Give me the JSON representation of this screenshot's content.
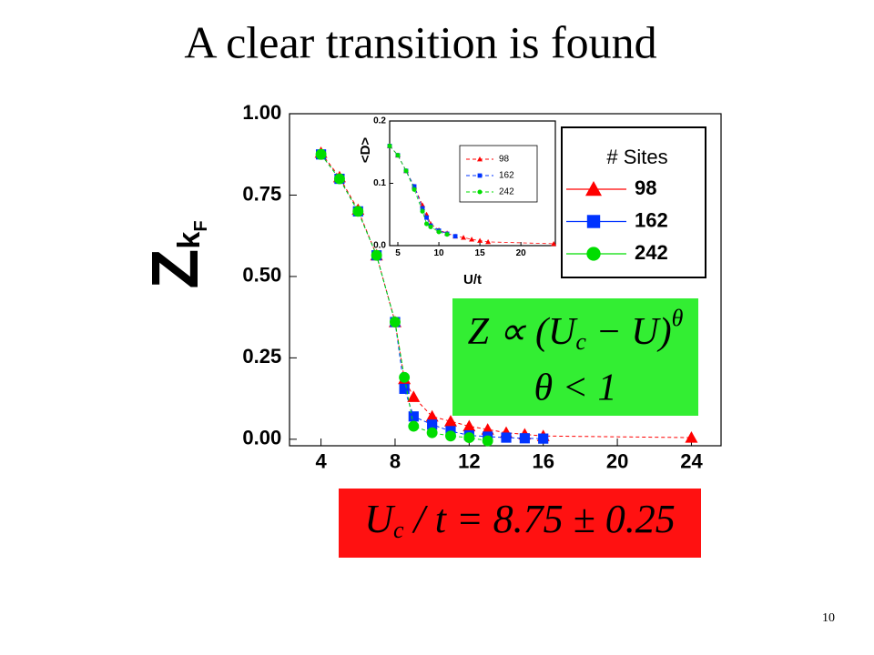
{
  "slide": {
    "title": "A clear transition is found",
    "page_number": "10"
  },
  "equations": {
    "scaling": [
      "Z ∝ (U",
      "c",
      " − U)",
      "θ"
    ],
    "exponent": "θ < 1",
    "critical": [
      "U",
      "c",
      " / t = 8.75 ± 0.25"
    ]
  },
  "chart_data": [
    {
      "type": "line",
      "ylabel": [
        "Z",
        "k",
        "F"
      ],
      "x": [
        4,
        5,
        6,
        7,
        8,
        8.5,
        9,
        10,
        11,
        12,
        13,
        14,
        15,
        16,
        24
      ],
      "series": [
        {
          "name": "98",
          "color": "#ff0000",
          "marker": "triangle",
          "values": [
            0.88,
            0.805,
            0.705,
            0.565,
            0.36,
            0.185,
            0.13,
            0.07,
            0.055,
            0.04,
            0.03,
            0.02,
            0.015,
            0.01,
            0.005
          ]
        },
        {
          "name": "162",
          "color": "#0033ff",
          "marker": "square",
          "values": [
            0.875,
            0.8,
            0.7,
            0.565,
            0.36,
            0.155,
            0.07,
            0.045,
            0.025,
            0.012,
            0.008,
            0.005,
            0.003,
            0.002,
            null
          ]
        },
        {
          "name": "242",
          "color": "#00dd00",
          "marker": "circle",
          "values": [
            0.875,
            0.8,
            0.7,
            0.565,
            0.36,
            0.19,
            0.04,
            0.02,
            0.01,
            0.005,
            -0.005,
            null,
            null,
            null,
            null
          ]
        }
      ],
      "legend_title": "# Sites",
      "legend": "upper right",
      "xlim": [
        2.3,
        25.6
      ],
      "xticks": [
        4,
        8,
        12,
        16,
        20,
        24
      ],
      "ylim": [
        -0.02,
        1.0
      ],
      "yticks": [
        {
          "value": 0,
          "label": "0.00"
        },
        {
          "value": 0.25,
          "label": "0.25"
        },
        {
          "value": 0.5,
          "label": "0.50"
        },
        {
          "value": 0.75,
          "label": "0.75"
        },
        {
          "value": 1,
          "label": "1.00"
        }
      ]
    },
    {
      "type": "line",
      "xlabel": "U/t",
      "ylabel": "<D>",
      "x": [
        4,
        5,
        6,
        7,
        8,
        8.5,
        9,
        10,
        11,
        12,
        13,
        14,
        15,
        16,
        24
      ],
      "series": [
        {
          "name": "98",
          "color": "#ff0000",
          "marker": "triangle",
          "values": [
            0.16,
            0.145,
            0.12,
            0.095,
            0.065,
            0.05,
            0.035,
            0.025,
            0.02,
            0.015,
            0.013,
            0.01,
            0.008,
            0.006,
            0.003
          ]
        },
        {
          "name": "162",
          "color": "#0033ff",
          "marker": "square",
          "values": [
            0.16,
            0.145,
            0.12,
            0.095,
            0.06,
            0.045,
            0.032,
            0.024,
            0.019,
            0.015,
            null,
            null,
            null,
            null,
            null
          ]
        },
        {
          "name": "242",
          "color": "#00dd00",
          "marker": "circle",
          "values": [
            0.16,
            0.145,
            0.12,
            0.09,
            0.055,
            0.035,
            0.03,
            0.022,
            0.018,
            null,
            null,
            null,
            null,
            null,
            null
          ]
        }
      ],
      "legend": "upper right",
      "xlim": [
        4,
        24.2
      ],
      "xticks": [
        5,
        10,
        15,
        20
      ],
      "ylim": [
        0,
        0.2
      ],
      "yticks": [
        {
          "value": 0,
          "label": "0.0"
        },
        {
          "value": 0.1,
          "label": "0.1"
        },
        {
          "value": 0.2,
          "label": "0.2"
        }
      ]
    }
  ]
}
